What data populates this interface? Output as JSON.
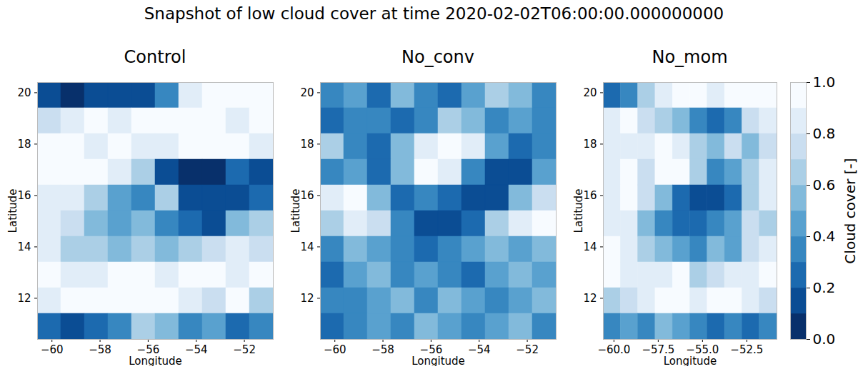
{
  "title": "Snapshot of low cloud cover at time 2020-02-02T06:00:00.000000000",
  "chart_data": [
    {
      "type": "heatmap",
      "title": "Control",
      "xlabel": "Longitude",
      "ylabel": "Latitude",
      "xlim": [
        -60.6,
        -50.8
      ],
      "ylim": [
        10.4,
        20.4
      ],
      "xticks": [
        {
          "value": -60,
          "label": "−60"
        },
        {
          "value": -58,
          "label": "−58"
        },
        {
          "value": -56,
          "label": "−56"
        },
        {
          "value": -54,
          "label": "−54"
        },
        {
          "value": -52,
          "label": "−52"
        }
      ],
      "yticks": [
        12,
        14,
        16,
        18,
        20
      ],
      "lon_edges": [
        -60.6,
        -59.62,
        -58.64,
        -57.66,
        -56.68,
        -55.7,
        -54.72,
        -53.74,
        -52.76,
        -51.78,
        -50.8
      ],
      "lat_edges": [
        20.4,
        19.4,
        18.4,
        17.4,
        16.4,
        15.4,
        14.4,
        13.4,
        12.4,
        11.4,
        10.4
      ],
      "cells": [
        [
          0.1,
          0.05,
          0.1,
          0.1,
          0.15,
          0.3,
          0.8,
          0.9,
          0.95,
          0.9
        ],
        [
          0.7,
          0.8,
          0.9,
          0.85,
          0.9,
          0.9,
          0.95,
          0.9,
          0.85,
          0.9
        ],
        [
          0.9,
          0.9,
          0.85,
          0.9,
          0.8,
          0.85,
          0.9,
          0.9,
          0.9,
          0.8
        ],
        [
          0.9,
          0.95,
          0.9,
          0.8,
          0.6,
          0.1,
          0.05,
          0.05,
          0.2,
          0.1
        ],
        [
          0.85,
          0.8,
          0.6,
          0.4,
          0.3,
          0.6,
          0.1,
          0.1,
          0.1,
          0.2
        ],
        [
          0.8,
          0.7,
          0.5,
          0.4,
          0.5,
          0.3,
          0.2,
          0.1,
          0.5,
          0.6
        ],
        [
          0.8,
          0.6,
          0.6,
          0.5,
          0.6,
          0.5,
          0.6,
          0.7,
          0.8,
          0.7
        ],
        [
          0.9,
          0.85,
          0.8,
          0.9,
          0.9,
          0.85,
          0.9,
          0.9,
          0.85,
          0.9
        ],
        [
          0.8,
          0.9,
          0.9,
          0.95,
          0.9,
          0.9,
          0.8,
          0.7,
          0.9,
          0.6
        ],
        [
          0.2,
          0.1,
          0.2,
          0.3,
          0.6,
          0.5,
          0.3,
          0.4,
          0.2,
          0.3
        ]
      ]
    },
    {
      "type": "heatmap",
      "title": "No_conv",
      "xlabel": "Longitude",
      "ylabel": "Latitude",
      "xlim": [
        -60.6,
        -50.8
      ],
      "ylim": [
        10.4,
        20.4
      ],
      "xticks": [
        {
          "value": -60,
          "label": "−60"
        },
        {
          "value": -58,
          "label": "−58"
        },
        {
          "value": -56,
          "label": "−56"
        },
        {
          "value": -54,
          "label": "−54"
        },
        {
          "value": -52,
          "label": "−52"
        }
      ],
      "yticks": [
        12,
        14,
        16,
        18,
        20
      ],
      "lon_edges": [
        -60.6,
        -59.62,
        -58.64,
        -57.66,
        -56.68,
        -55.7,
        -54.72,
        -53.74,
        -52.76,
        -51.78,
        -50.8
      ],
      "lat_edges": [
        20.4,
        19.4,
        18.4,
        17.4,
        16.4,
        15.4,
        14.4,
        13.4,
        12.4,
        11.4,
        10.4
      ],
      "cells": [
        [
          0.3,
          0.4,
          0.2,
          0.5,
          0.3,
          0.2,
          0.4,
          0.6,
          0.5,
          0.3
        ],
        [
          0.2,
          0.3,
          0.3,
          0.2,
          0.3,
          0.6,
          0.5,
          0.3,
          0.4,
          0.3
        ],
        [
          0.6,
          0.3,
          0.2,
          0.5,
          0.8,
          0.9,
          0.85,
          0.4,
          0.2,
          0.3
        ],
        [
          0.3,
          0.4,
          0.2,
          0.5,
          0.9,
          0.8,
          0.3,
          0.1,
          0.1,
          0.4
        ],
        [
          0.8,
          0.9,
          0.5,
          0.2,
          0.3,
          0.2,
          0.1,
          0.1,
          0.5,
          0.7
        ],
        [
          0.6,
          0.8,
          0.7,
          0.3,
          0.1,
          0.1,
          0.2,
          0.6,
          0.8,
          0.9
        ],
        [
          0.3,
          0.5,
          0.4,
          0.3,
          0.2,
          0.3,
          0.4,
          0.5,
          0.4,
          0.5
        ],
        [
          0.2,
          0.4,
          0.5,
          0.3,
          0.4,
          0.3,
          0.2,
          0.4,
          0.5,
          0.4
        ],
        [
          0.3,
          0.3,
          0.4,
          0.5,
          0.3,
          0.5,
          0.4,
          0.3,
          0.4,
          0.5
        ],
        [
          0.2,
          0.3,
          0.4,
          0.3,
          0.5,
          0.4,
          0.3,
          0.4,
          0.5,
          0.3
        ]
      ]
    },
    {
      "type": "heatmap",
      "title": "No_mom",
      "xlabel": "Longitude",
      "ylabel": "Latitude",
      "xlim": [
        -60.6,
        -50.8
      ],
      "ylim": [
        10.4,
        20.4
      ],
      "xticks": [
        {
          "value": -60,
          "label": "−60.0"
        },
        {
          "value": -57.5,
          "label": "−57.5"
        },
        {
          "value": -55,
          "label": "−55.0"
        },
        {
          "value": -52.5,
          "label": "−52.5"
        }
      ],
      "yticks": [
        12,
        14,
        16,
        18,
        20
      ],
      "lon_edges": [
        -60.6,
        -59.62,
        -58.64,
        -57.66,
        -56.68,
        -55.7,
        -54.72,
        -53.74,
        -52.76,
        -51.78,
        -50.8
      ],
      "lat_edges": [
        20.4,
        19.4,
        18.4,
        17.4,
        16.4,
        15.4,
        14.4,
        13.4,
        12.4,
        11.4,
        10.4
      ],
      "cells": [
        [
          0.2,
          0.3,
          0.6,
          0.8,
          0.9,
          0.9,
          0.8,
          0.9,
          0.9,
          0.9
        ],
        [
          0.8,
          0.9,
          0.7,
          0.6,
          0.5,
          0.3,
          0.2,
          0.3,
          0.7,
          0.8
        ],
        [
          0.8,
          0.85,
          0.8,
          0.9,
          0.8,
          0.6,
          0.5,
          0.7,
          0.5,
          0.7
        ],
        [
          0.85,
          0.9,
          0.7,
          0.9,
          0.9,
          0.6,
          0.3,
          0.4,
          0.6,
          0.8
        ],
        [
          0.85,
          0.9,
          0.7,
          0.5,
          0.2,
          0.1,
          0.1,
          0.2,
          0.6,
          0.8
        ],
        [
          0.8,
          0.85,
          0.5,
          0.3,
          0.2,
          0.2,
          0.3,
          0.4,
          0.7,
          0.6
        ],
        [
          0.9,
          0.85,
          0.6,
          0.5,
          0.4,
          0.3,
          0.5,
          0.4,
          0.7,
          0.8
        ],
        [
          0.9,
          0.8,
          0.8,
          0.85,
          0.9,
          0.6,
          0.7,
          0.8,
          0.85,
          0.9
        ],
        [
          0.6,
          0.7,
          0.8,
          0.9,
          0.9,
          0.85,
          0.9,
          0.9,
          0.8,
          0.7
        ],
        [
          0.3,
          0.4,
          0.3,
          0.5,
          0.4,
          0.3,
          0.2,
          0.3,
          0.2,
          0.3
        ]
      ]
    }
  ],
  "colorbar": {
    "label": "Cloud cover [-]",
    "range": [
      0,
      1
    ],
    "levels": [
      0,
      0.1,
      0.2,
      0.3,
      0.4,
      0.5,
      0.6,
      0.7,
      0.8,
      0.9,
      1
    ],
    "ticks": [
      {
        "value": 0,
        "label": "0.0"
      },
      {
        "value": 0.2,
        "label": "0.2"
      },
      {
        "value": 0.4,
        "label": "0.4"
      },
      {
        "value": 0.6,
        "label": "0.6"
      },
      {
        "value": 0.8,
        "label": "0.8"
      },
      {
        "value": 1,
        "label": "1.0"
      }
    ]
  }
}
